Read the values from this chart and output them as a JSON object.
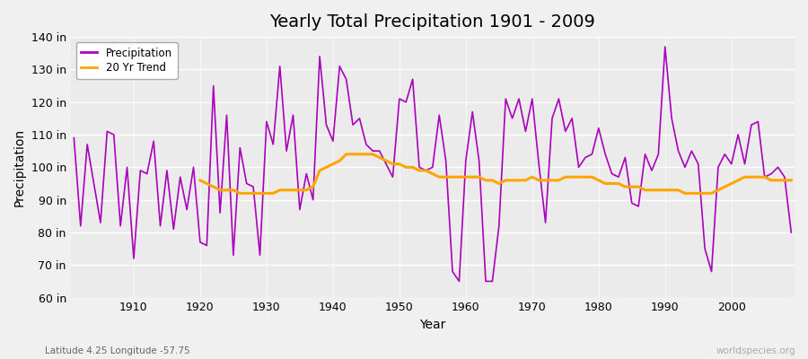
{
  "title": "Yearly Total Precipitation 1901 - 2009",
  "xlabel": "Year",
  "ylabel": "Precipitation",
  "subtitle": "Latitude 4.25 Longitude -57.75",
  "watermark": "worldspecies.org",
  "years": [
    1901,
    1902,
    1903,
    1904,
    1905,
    1906,
    1907,
    1908,
    1909,
    1910,
    1911,
    1912,
    1913,
    1914,
    1915,
    1916,
    1917,
    1918,
    1919,
    1920,
    1921,
    1922,
    1923,
    1924,
    1925,
    1926,
    1927,
    1928,
    1929,
    1930,
    1931,
    1932,
    1933,
    1934,
    1935,
    1936,
    1937,
    1938,
    1939,
    1940,
    1941,
    1942,
    1943,
    1944,
    1945,
    1946,
    1947,
    1948,
    1949,
    1950,
    1951,
    1952,
    1953,
    1954,
    1955,
    1956,
    1957,
    1958,
    1959,
    1960,
    1961,
    1962,
    1963,
    1964,
    1965,
    1966,
    1967,
    1968,
    1969,
    1970,
    1971,
    1972,
    1973,
    1974,
    1975,
    1976,
    1977,
    1978,
    1979,
    1980,
    1981,
    1982,
    1983,
    1984,
    1985,
    1986,
    1987,
    1988,
    1989,
    1990,
    1991,
    1992,
    1993,
    1994,
    1995,
    1996,
    1997,
    1998,
    1999,
    2000,
    2001,
    2002,
    2003,
    2004,
    2005,
    2006,
    2007,
    2008,
    2009
  ],
  "precipitation": [
    109,
    82,
    107,
    95,
    83,
    111,
    110,
    82,
    100,
    72,
    99,
    98,
    108,
    82,
    99,
    81,
    97,
    87,
    100,
    77,
    76,
    125,
    86,
    116,
    73,
    106,
    95,
    94,
    73,
    114,
    107,
    131,
    105,
    116,
    87,
    98,
    90,
    134,
    113,
    108,
    131,
    127,
    113,
    115,
    107,
    105,
    105,
    101,
    97,
    121,
    120,
    127,
    100,
    99,
    100,
    116,
    102,
    68,
    65,
    102,
    117,
    102,
    65,
    65,
    82,
    121,
    115,
    121,
    111,
    121,
    101,
    83,
    115,
    121,
    111,
    115,
    100,
    103,
    104,
    112,
    104,
    98,
    97,
    103,
    89,
    88,
    104,
    99,
    104,
    137,
    115,
    105,
    100,
    105,
    101,
    75,
    68,
    100,
    104,
    101,
    110,
    101,
    113,
    114,
    97,
    98,
    100,
    97,
    80
  ],
  "trend": [
    null,
    null,
    null,
    null,
    null,
    null,
    null,
    null,
    null,
    null,
    null,
    null,
    null,
    null,
    null,
    null,
    null,
    null,
    null,
    96,
    95,
    94,
    93,
    93,
    93,
    92,
    92,
    92,
    92,
    92,
    92,
    93,
    93,
    93,
    93,
    93,
    94,
    99,
    100,
    101,
    102,
    104,
    104,
    104,
    104,
    104,
    103,
    102,
    101,
    101,
    100,
    100,
    99,
    99,
    98,
    97,
    97,
    97,
    97,
    97,
    97,
    97,
    96,
    96,
    95,
    96,
    96,
    96,
    96,
    97,
    96,
    96,
    96,
    96,
    97,
    97,
    97,
    97,
    97,
    96,
    95,
    95,
    95,
    94,
    94,
    94,
    93,
    93,
    93,
    93,
    93,
    93,
    92,
    92,
    92,
    92,
    92,
    93,
    94,
    95,
    96,
    97,
    97,
    97,
    97,
    96,
    96,
    96,
    96
  ],
  "precip_color": "#AA00BB",
  "trend_color": "#FFA500",
  "bg_color": "#F0F0F0",
  "plot_bg_color": "#EBEBEB",
  "grid_color": "#FFFFFF",
  "ylim": [
    60,
    140
  ],
  "yticks": [
    60,
    70,
    80,
    90,
    100,
    110,
    120,
    130,
    140
  ],
  "title_fontsize": 14,
  "axis_fontsize": 10,
  "tick_fontsize": 9,
  "xticks": [
    1910,
    1920,
    1930,
    1940,
    1950,
    1960,
    1970,
    1980,
    1990,
    2000
  ]
}
